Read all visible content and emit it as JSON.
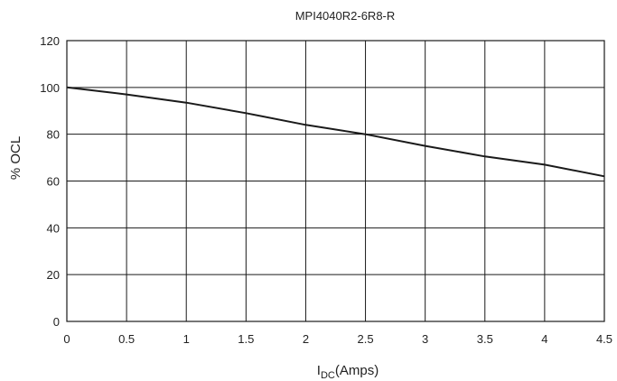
{
  "chart_data": {
    "type": "line",
    "title": "MPI4040R2-6R8-R",
    "xlabel": {
      "main": "I",
      "subscript": "DC",
      "suffix": "(Amps)"
    },
    "ylabel": "% OCL",
    "xlim": [
      0,
      4.5
    ],
    "ylim": [
      0,
      120
    ],
    "x_ticks": [
      "0",
      "0.5",
      "1",
      "1.5",
      "2",
      "2.5",
      "3",
      "3.5",
      "4",
      "4.5"
    ],
    "y_ticks": [
      "0",
      "20",
      "40",
      "60",
      "80",
      "100",
      "120"
    ],
    "x_tick_values": [
      0,
      0.5,
      1,
      1.5,
      2,
      2.5,
      3,
      3.5,
      4,
      4.5
    ],
    "y_tick_values": [
      0,
      20,
      40,
      60,
      80,
      100,
      120
    ],
    "grid": true,
    "series": [
      {
        "x": [
          0,
          0.5,
          1,
          1.5,
          2,
          2.5,
          3,
          3.5,
          4,
          4.5
        ],
        "y": [
          100,
          97,
          93.5,
          89,
          84,
          80,
          75,
          70.5,
          67,
          62
        ],
        "color": "#1a1a1a"
      }
    ]
  }
}
